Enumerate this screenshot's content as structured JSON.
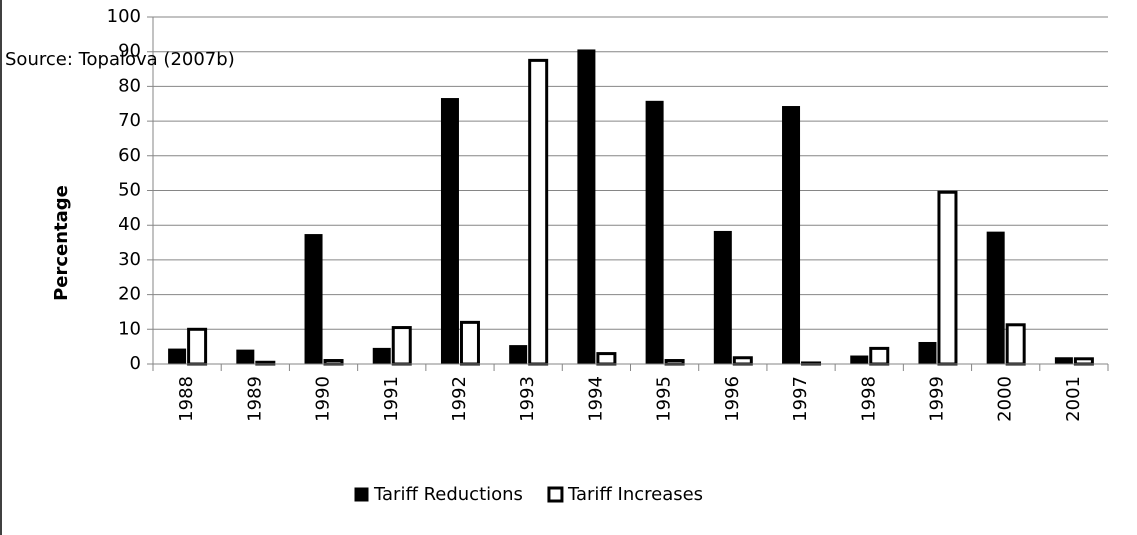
{
  "chart_data": {
    "type": "bar",
    "annotation": "Source: Topalova (2007b)",
    "y_label": "Percentage",
    "categories": [
      "1988",
      "1989",
      "1990",
      "1991",
      "1992",
      "1993",
      "1994",
      "1995",
      "1996",
      "1997",
      "1998",
      "1999",
      "2000",
      "2001"
    ],
    "series": [
      {
        "name": "Tariff Reductions",
        "color": "#000000",
        "values": [
          4.3,
          4.0,
          37.3,
          4.5,
          76.5,
          5.3,
          90.5,
          75.7,
          38.2,
          74.2,
          2.3,
          6.2,
          38.0,
          1.8
        ]
      },
      {
        "name": "Tariff Increases",
        "color": "#ffffff",
        "values": [
          10.0,
          0.5,
          1.0,
          10.5,
          12.0,
          87.5,
          3.0,
          1.0,
          1.8,
          0.3,
          4.5,
          49.5,
          11.3,
          1.5
        ]
      }
    ],
    "ylim": [
      0,
      100
    ],
    "yticks": [
      0,
      10,
      20,
      30,
      40,
      50,
      60,
      70,
      80,
      90,
      100
    ],
    "grid": true,
    "legend": "bottom"
  }
}
